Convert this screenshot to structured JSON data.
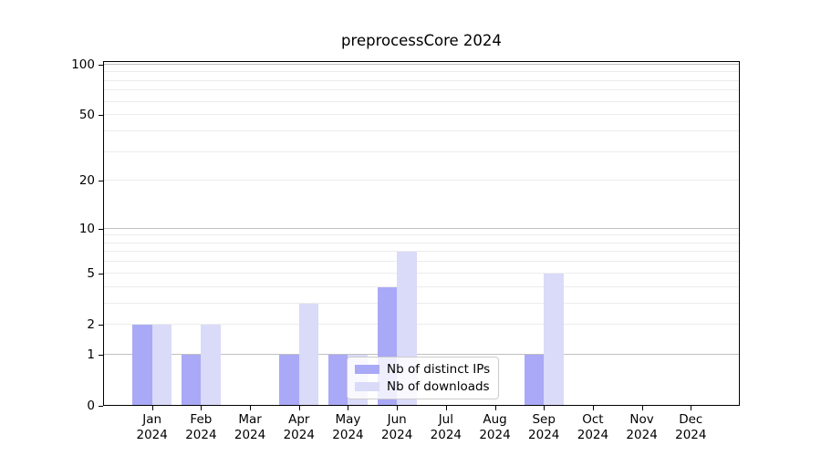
{
  "figure": {
    "background": "#ffffff"
  },
  "chart_data": {
    "type": "bar",
    "title": "preprocessCore 2024",
    "categories": [
      "Jan",
      "Feb",
      "Mar",
      "Apr",
      "May",
      "Jun",
      "Jul",
      "Aug",
      "Sep",
      "Oct",
      "Nov",
      "Dec"
    ],
    "x_sublabel": "2024",
    "series": [
      {
        "name": "Nb of distinct IPs",
        "color": "#a9a9f7",
        "values": [
          2,
          1,
          0,
          1,
          1,
          4,
          0,
          0,
          1,
          0,
          0,
          0
        ]
      },
      {
        "name": "Nb of downloads",
        "color": "#dadaf9",
        "values": [
          2,
          2,
          0,
          3,
          1,
          7,
          0,
          0,
          5,
          0,
          0,
          0
        ]
      }
    ],
    "xlabel": "",
    "ylabel": "",
    "yscale": "log1p",
    "ylim": [
      0,
      105
    ],
    "yticks": [
      0,
      1,
      2,
      5,
      10,
      20,
      50,
      100
    ],
    "grid": {
      "major_values": [
        1,
        10,
        100
      ],
      "minor_values": [
        2,
        3,
        4,
        5,
        6,
        7,
        8,
        9,
        20,
        30,
        40,
        50,
        60,
        70,
        80,
        90
      ],
      "major_color": "#c0c0c0",
      "minor_color": "#ececec"
    },
    "legend_position": "lower center",
    "axis_color": "#000000"
  }
}
